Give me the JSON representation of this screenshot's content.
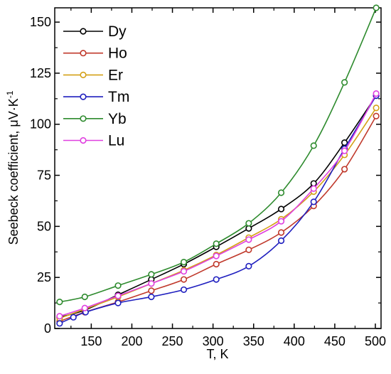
{
  "chart_data": {
    "type": "line",
    "title": "",
    "xlabel": "T, K",
    "ylabel": "Seebeck coefficient, μV·K",
    "ylabel_superscript": "-1",
    "xlim": [
      105,
      507
    ],
    "ylim": [
      0,
      157
    ],
    "x_ticks": [
      150,
      200,
      250,
      300,
      350,
      400,
      450,
      500
    ],
    "y_ticks": [
      0,
      25,
      50,
      75,
      100,
      125,
      150
    ],
    "grid": false,
    "legend_position": "top-left",
    "series": [
      {
        "name": "Dy",
        "color": "#000000",
        "points": [
          [
            111,
            5.5
          ],
          [
            142,
            9
          ],
          [
            183,
            16.5
          ],
          [
            224,
            24
          ],
          [
            264,
            31.5
          ],
          [
            304,
            40
          ],
          [
            344,
            49
          ],
          [
            384,
            58.5
          ],
          [
            424,
            71
          ],
          [
            462,
            91
          ],
          [
            501,
            114
          ]
        ]
      },
      {
        "name": "Ho",
        "color": "#c0392b",
        "points": [
          [
            111,
            3.5
          ],
          [
            142,
            8
          ],
          [
            183,
            13
          ],
          [
            224,
            18.5
          ],
          [
            264,
            24
          ],
          [
            304,
            31.5
          ],
          [
            344,
            38.5
          ],
          [
            384,
            47
          ],
          [
            424,
            60
          ],
          [
            462,
            78
          ],
          [
            501,
            104
          ]
        ]
      },
      {
        "name": "Er",
        "color": "#d4a017",
        "points": [
          [
            111,
            5
          ],
          [
            142,
            9.5
          ],
          [
            183,
            15.5
          ],
          [
            224,
            22
          ],
          [
            264,
            28.5
          ],
          [
            304,
            36
          ],
          [
            344,
            44.5
          ],
          [
            384,
            53.5
          ],
          [
            424,
            67
          ],
          [
            462,
            85
          ],
          [
            501,
            108
          ]
        ]
      },
      {
        "name": "Tm",
        "color": "#1f1fbf",
        "points": [
          [
            111,
            2.5
          ],
          [
            128,
            5.5
          ],
          [
            143,
            8
          ],
          [
            183,
            12.5
          ],
          [
            224,
            15.5
          ],
          [
            264,
            19
          ],
          [
            304,
            24
          ],
          [
            344,
            30.5
          ],
          [
            384,
            43
          ],
          [
            424,
            62
          ],
          [
            462,
            88
          ],
          [
            501,
            114
          ]
        ]
      },
      {
        "name": "Yb",
        "color": "#2e8b2e",
        "points": [
          [
            111,
            13
          ],
          [
            142,
            15.5
          ],
          [
            183,
            21
          ],
          [
            224,
            26.5
          ],
          [
            264,
            32.5
          ],
          [
            304,
            41.5
          ],
          [
            344,
            51.5
          ],
          [
            384,
            66.5
          ],
          [
            424,
            89.5
          ],
          [
            462,
            120.5
          ],
          [
            501,
            157
          ]
        ]
      },
      {
        "name": "Lu",
        "color": "#e040e0",
        "points": [
          [
            111,
            6
          ],
          [
            142,
            10
          ],
          [
            183,
            16
          ],
          [
            224,
            22
          ],
          [
            264,
            28
          ],
          [
            304,
            35.5
          ],
          [
            344,
            43.5
          ],
          [
            384,
            52.5
          ],
          [
            424,
            68.5
          ],
          [
            462,
            87
          ],
          [
            501,
            115
          ]
        ]
      }
    ]
  }
}
